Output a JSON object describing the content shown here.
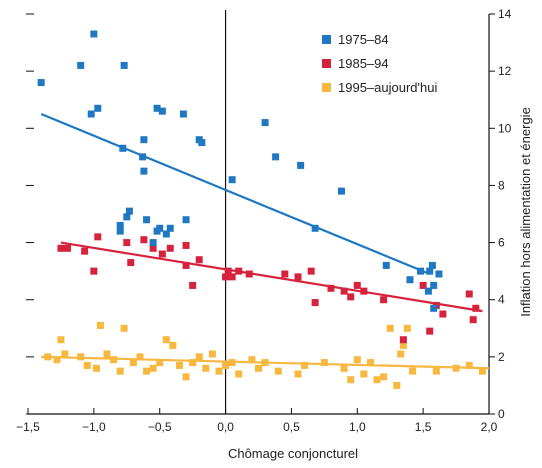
{
  "chart_data": {
    "type": "scatter",
    "xlabel": "Chômage conjoncturel",
    "ylabel": "Inflation hors alimentation et énergie",
    "xlim": [
      -1.5,
      2.0
    ],
    "ylim": [
      0,
      14
    ],
    "y_axis_position": "right",
    "x_ticks": [
      "−1,5",
      "−1,0",
      "−0,5",
      "0,0",
      "0,5",
      "1,0",
      "1,5",
      "2,0"
    ],
    "y_ticks": [
      "0",
      "2",
      "4",
      "6",
      "8",
      "10",
      "12",
      "14"
    ],
    "legend_position": "top-right",
    "series": [
      {
        "name": "1975–84",
        "color": "#1f78c1",
        "points": [
          [
            -1.4,
            11.6
          ],
          [
            -1.1,
            12.2
          ],
          [
            -1.0,
            13.3
          ],
          [
            -1.02,
            10.5
          ],
          [
            -0.97,
            10.7
          ],
          [
            -0.77,
            12.2
          ],
          [
            -0.78,
            9.3
          ],
          [
            -0.52,
            10.7
          ],
          [
            -0.48,
            10.6
          ],
          [
            -0.62,
            9.6
          ],
          [
            -0.63,
            9.0
          ],
          [
            -0.62,
            8.5
          ],
          [
            -0.32,
            10.5
          ],
          [
            -0.2,
            9.6
          ],
          [
            -0.18,
            9.5
          ],
          [
            -0.8,
            6.6
          ],
          [
            -0.8,
            6.4
          ],
          [
            -0.75,
            6.9
          ],
          [
            -0.73,
            7.1
          ],
          [
            -0.6,
            6.8
          ],
          [
            -0.5,
            6.5
          ],
          [
            -0.52,
            6.4
          ],
          [
            -0.45,
            6.3
          ],
          [
            -0.55,
            6.0
          ],
          [
            -0.42,
            6.5
          ],
          [
            -0.3,
            6.8
          ],
          [
            0.05,
            8.2
          ],
          [
            0.3,
            10.2
          ],
          [
            0.38,
            9.0
          ],
          [
            0.57,
            8.7
          ],
          [
            0.88,
            7.8
          ],
          [
            0.68,
            6.5
          ],
          [
            1.22,
            5.2
          ],
          [
            1.4,
            4.7
          ],
          [
            1.48,
            5.0
          ],
          [
            1.55,
            5.0
          ],
          [
            1.57,
            5.2
          ],
          [
            1.62,
            4.9
          ],
          [
            1.58,
            4.5
          ],
          [
            1.54,
            4.3
          ],
          [
            1.58,
            3.7
          ]
        ],
        "trend": [
          [
            -1.4,
            10.5
          ],
          [
            1.55,
            4.9
          ]
        ]
      },
      {
        "name": "1985–94",
        "color": "#d6223c",
        "points": [
          [
            -1.25,
            5.8
          ],
          [
            -1.2,
            5.8
          ],
          [
            -1.07,
            5.7
          ],
          [
            -0.97,
            6.2
          ],
          [
            -1.0,
            5.0
          ],
          [
            -0.75,
            6.0
          ],
          [
            -0.72,
            5.3
          ],
          [
            -0.62,
            6.1
          ],
          [
            -0.55,
            5.8
          ],
          [
            -0.48,
            5.6
          ],
          [
            -0.42,
            5.8
          ],
          [
            -0.3,
            5.9
          ],
          [
            -0.3,
            5.2
          ],
          [
            -0.2,
            5.4
          ],
          [
            -0.25,
            4.5
          ],
          [
            0.0,
            4.8
          ],
          [
            0.02,
            5.0
          ],
          [
            0.05,
            4.8
          ],
          [
            0.1,
            5.0
          ],
          [
            0.18,
            4.9
          ],
          [
            0.45,
            4.9
          ],
          [
            0.55,
            4.8
          ],
          [
            0.65,
            5.0
          ],
          [
            0.68,
            3.9
          ],
          [
            0.8,
            4.4
          ],
          [
            0.9,
            4.3
          ],
          [
            0.95,
            4.1
          ],
          [
            1.0,
            4.5
          ],
          [
            1.05,
            4.3
          ],
          [
            1.2,
            4.0
          ],
          [
            1.35,
            2.6
          ],
          [
            1.5,
            4.5
          ],
          [
            1.55,
            2.9
          ],
          [
            1.6,
            3.8
          ],
          [
            1.65,
            3.5
          ],
          [
            1.85,
            4.2
          ],
          [
            1.88,
            3.3
          ],
          [
            1.9,
            3.7
          ]
        ],
        "trend": [
          [
            -1.25,
            6.0
          ],
          [
            1.95,
            3.6
          ]
        ]
      },
      {
        "name": "1995–aujourd'hui",
        "color": "#f8b73f",
        "points": [
          [
            -1.35,
            2.0
          ],
          [
            -1.28,
            1.9
          ],
          [
            -1.25,
            2.6
          ],
          [
            -1.22,
            2.1
          ],
          [
            -1.1,
            2.0
          ],
          [
            -1.05,
            1.7
          ],
          [
            -0.98,
            1.6
          ],
          [
            -0.95,
            3.1
          ],
          [
            -0.9,
            2.1
          ],
          [
            -0.85,
            1.9
          ],
          [
            -0.8,
            1.5
          ],
          [
            -0.77,
            3.0
          ],
          [
            -0.7,
            1.8
          ],
          [
            -0.65,
            2.0
          ],
          [
            -0.6,
            1.5
          ],
          [
            -0.55,
            1.6
          ],
          [
            -0.5,
            1.8
          ],
          [
            -0.45,
            2.6
          ],
          [
            -0.4,
            2.4
          ],
          [
            -0.35,
            1.7
          ],
          [
            -0.3,
            1.3
          ],
          [
            -0.25,
            1.8
          ],
          [
            -0.2,
            2.0
          ],
          [
            -0.15,
            1.6
          ],
          [
            -0.1,
            2.1
          ],
          [
            -0.05,
            1.5
          ],
          [
            0.0,
            1.7
          ],
          [
            0.05,
            1.8
          ],
          [
            0.1,
            1.4
          ],
          [
            0.2,
            1.9
          ],
          [
            0.25,
            1.6
          ],
          [
            0.3,
            1.8
          ],
          [
            0.4,
            1.5
          ],
          [
            0.55,
            1.4
          ],
          [
            0.6,
            1.7
          ],
          [
            0.75,
            1.8
          ],
          [
            0.9,
            1.6
          ],
          [
            0.95,
            1.2
          ],
          [
            1.0,
            1.9
          ],
          [
            1.05,
            1.4
          ],
          [
            1.1,
            1.8
          ],
          [
            1.15,
            1.2
          ],
          [
            1.2,
            1.3
          ],
          [
            1.25,
            3.0
          ],
          [
            1.3,
            1.0
          ],
          [
            1.33,
            2.1
          ],
          [
            1.35,
            2.4
          ],
          [
            1.38,
            3.0
          ],
          [
            1.42,
            1.5
          ],
          [
            1.6,
            1.5
          ],
          [
            1.75,
            1.6
          ],
          [
            1.85,
            1.7
          ],
          [
            1.95,
            1.5
          ]
        ],
        "trend": [
          [
            -1.4,
            2.0
          ],
          [
            2.0,
            1.6
          ]
        ]
      }
    ]
  }
}
